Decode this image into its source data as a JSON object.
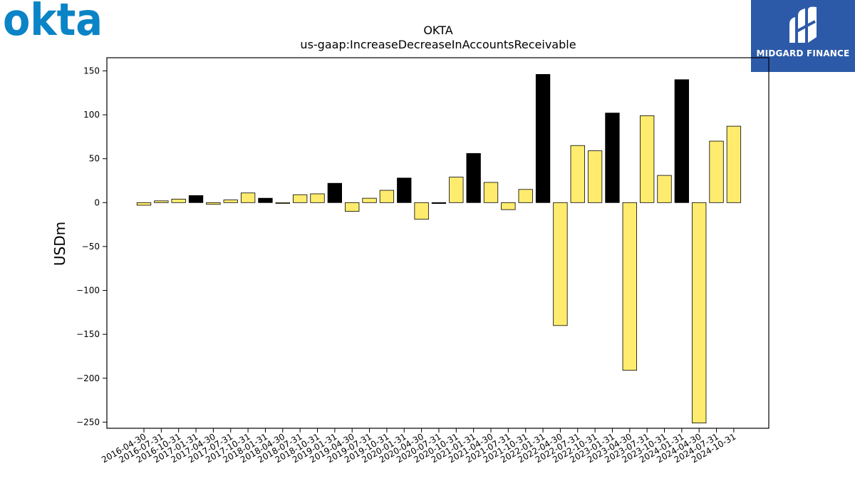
{
  "logos": {
    "left_brand": "okta",
    "right_brand": "MIDGARD FINANCE"
  },
  "colors": {
    "positive_bar_default": "#ffec6e",
    "highlight_bar": "#000000",
    "logo_blue": "#0a84c6",
    "badge_bg": "#2c5aa8"
  },
  "chart_data": {
    "type": "bar",
    "title": "OKTA",
    "subtitle": "us-gaap:IncreaseDecreaseInAccountsReceivable",
    "xlabel": "",
    "ylabel": "USDm",
    "ylim": [
      -257,
      165
    ],
    "yticks": [
      150,
      100,
      50,
      0,
      -50,
      -100,
      -150,
      -200,
      -250
    ],
    "categories": [
      "2016-04-30",
      "2016-07-31",
      "2016-10-31",
      "2017-01-31",
      "2017-04-30",
      "2017-07-31",
      "2017-10-31",
      "2018-01-31",
      "2018-04-30",
      "2018-07-31",
      "2018-10-31",
      "2019-01-31",
      "2019-04-30",
      "2019-07-31",
      "2019-10-31",
      "2020-01-31",
      "2020-04-30",
      "2020-07-31",
      "2020-10-31",
      "2021-01-31",
      "2021-04-30",
      "2021-07-31",
      "2021-10-31",
      "2022-01-31",
      "2022-04-30",
      "2022-07-31",
      "2022-10-31",
      "2023-01-31",
      "2023-04-30",
      "2023-07-31",
      "2023-10-31",
      "2024-01-31",
      "2024-04-30",
      "2024-07-31",
      "2024-10-31"
    ],
    "values": [
      -3,
      2,
      4,
      8,
      -2,
      3,
      11,
      5,
      -1,
      9,
      10,
      22,
      -10,
      5,
      14,
      28,
      -19,
      -1,
      29,
      56,
      23,
      -8,
      15,
      146,
      -140,
      65,
      59,
      102,
      -191,
      99,
      31,
      140,
      -251,
      70,
      87
    ],
    "highlight": [
      false,
      false,
      false,
      true,
      false,
      false,
      false,
      true,
      false,
      false,
      false,
      true,
      false,
      false,
      false,
      true,
      false,
      true,
      false,
      true,
      false,
      false,
      false,
      true,
      false,
      false,
      false,
      true,
      false,
      false,
      false,
      true,
      false,
      false,
      false
    ],
    "grid": false,
    "legend": "none"
  }
}
